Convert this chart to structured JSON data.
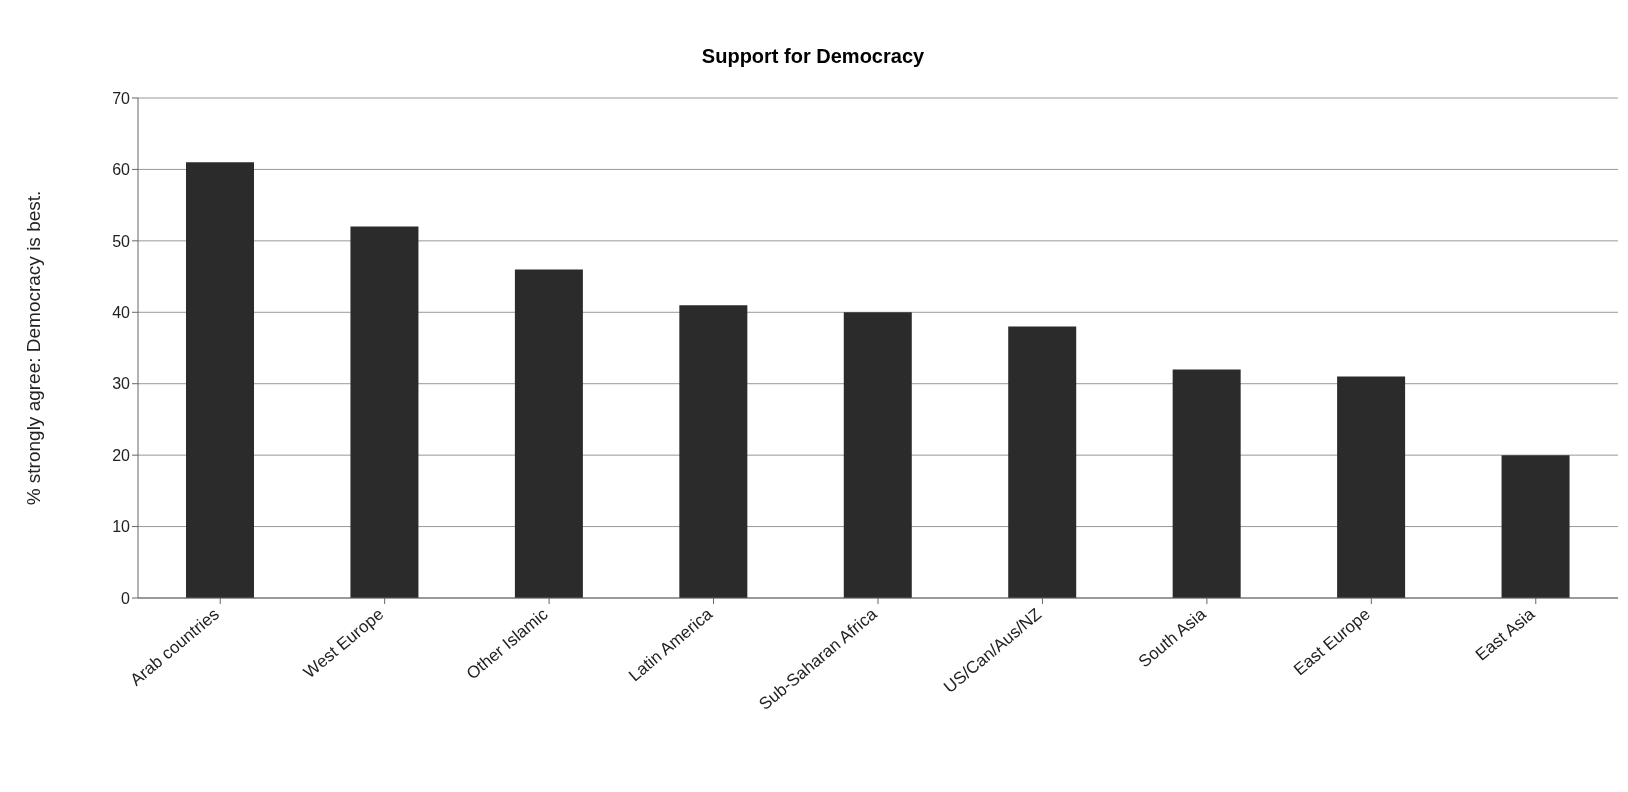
{
  "chart_data": {
    "type": "bar",
    "title": "Support for Democracy",
    "ylabel": "% strongly agree: Democracy is best.",
    "categories": [
      "Arab countries",
      "West Europe",
      "Other Islamic",
      "Latin America",
      "Sub-Saharan Africa",
      "US/Can/Aus/NZ",
      "South Asia",
      "East Europe",
      "East Asia"
    ],
    "values": [
      61,
      52,
      46,
      41,
      40,
      38,
      32,
      31,
      20
    ],
    "color": "#2b2b2b",
    "ylim": [
      0,
      70
    ],
    "yticks": [
      0,
      10,
      20,
      30,
      40,
      50,
      60,
      70
    ],
    "grid": "y"
  }
}
